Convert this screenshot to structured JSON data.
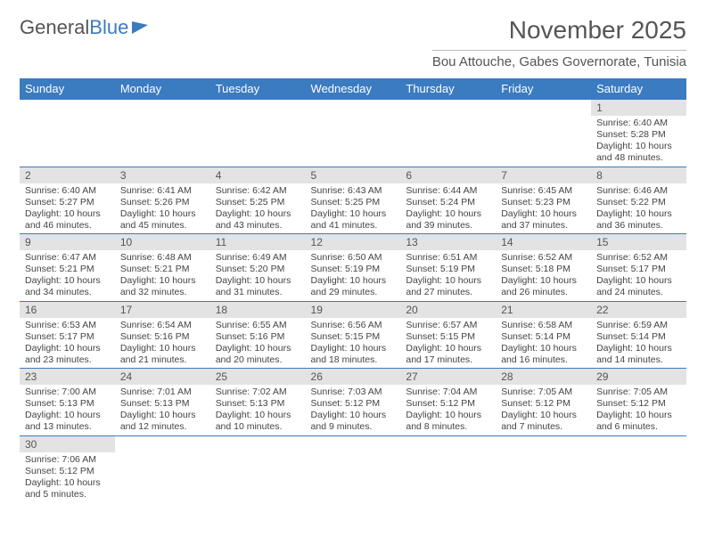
{
  "logo": {
    "text1": "General",
    "text2": "Blue"
  },
  "title": "November 2025",
  "location": "Bou Attouche, Gabes Governorate, Tunisia",
  "weekdays": [
    "Sunday",
    "Monday",
    "Tuesday",
    "Wednesday",
    "Thursday",
    "Friday",
    "Saturday"
  ],
  "header_bg": "#3b7bbf",
  "daynum_bg": "#e3e3e3",
  "row_border": "#3b7bbf",
  "first_weekday_index": 6,
  "days": [
    {
      "n": 1,
      "sunrise": "6:40 AM",
      "sunset": "5:28 PM",
      "daylight": "10 hours and 48 minutes."
    },
    {
      "n": 2,
      "sunrise": "6:40 AM",
      "sunset": "5:27 PM",
      "daylight": "10 hours and 46 minutes."
    },
    {
      "n": 3,
      "sunrise": "6:41 AM",
      "sunset": "5:26 PM",
      "daylight": "10 hours and 45 minutes."
    },
    {
      "n": 4,
      "sunrise": "6:42 AM",
      "sunset": "5:25 PM",
      "daylight": "10 hours and 43 minutes."
    },
    {
      "n": 5,
      "sunrise": "6:43 AM",
      "sunset": "5:25 PM",
      "daylight": "10 hours and 41 minutes."
    },
    {
      "n": 6,
      "sunrise": "6:44 AM",
      "sunset": "5:24 PM",
      "daylight": "10 hours and 39 minutes."
    },
    {
      "n": 7,
      "sunrise": "6:45 AM",
      "sunset": "5:23 PM",
      "daylight": "10 hours and 37 minutes."
    },
    {
      "n": 8,
      "sunrise": "6:46 AM",
      "sunset": "5:22 PM",
      "daylight": "10 hours and 36 minutes."
    },
    {
      "n": 9,
      "sunrise": "6:47 AM",
      "sunset": "5:21 PM",
      "daylight": "10 hours and 34 minutes."
    },
    {
      "n": 10,
      "sunrise": "6:48 AM",
      "sunset": "5:21 PM",
      "daylight": "10 hours and 32 minutes."
    },
    {
      "n": 11,
      "sunrise": "6:49 AM",
      "sunset": "5:20 PM",
      "daylight": "10 hours and 31 minutes."
    },
    {
      "n": 12,
      "sunrise": "6:50 AM",
      "sunset": "5:19 PM",
      "daylight": "10 hours and 29 minutes."
    },
    {
      "n": 13,
      "sunrise": "6:51 AM",
      "sunset": "5:19 PM",
      "daylight": "10 hours and 27 minutes."
    },
    {
      "n": 14,
      "sunrise": "6:52 AM",
      "sunset": "5:18 PM",
      "daylight": "10 hours and 26 minutes."
    },
    {
      "n": 15,
      "sunrise": "6:52 AM",
      "sunset": "5:17 PM",
      "daylight": "10 hours and 24 minutes."
    },
    {
      "n": 16,
      "sunrise": "6:53 AM",
      "sunset": "5:17 PM",
      "daylight": "10 hours and 23 minutes."
    },
    {
      "n": 17,
      "sunrise": "6:54 AM",
      "sunset": "5:16 PM",
      "daylight": "10 hours and 21 minutes."
    },
    {
      "n": 18,
      "sunrise": "6:55 AM",
      "sunset": "5:16 PM",
      "daylight": "10 hours and 20 minutes."
    },
    {
      "n": 19,
      "sunrise": "6:56 AM",
      "sunset": "5:15 PM",
      "daylight": "10 hours and 18 minutes."
    },
    {
      "n": 20,
      "sunrise": "6:57 AM",
      "sunset": "5:15 PM",
      "daylight": "10 hours and 17 minutes."
    },
    {
      "n": 21,
      "sunrise": "6:58 AM",
      "sunset": "5:14 PM",
      "daylight": "10 hours and 16 minutes."
    },
    {
      "n": 22,
      "sunrise": "6:59 AM",
      "sunset": "5:14 PM",
      "daylight": "10 hours and 14 minutes."
    },
    {
      "n": 23,
      "sunrise": "7:00 AM",
      "sunset": "5:13 PM",
      "daylight": "10 hours and 13 minutes."
    },
    {
      "n": 24,
      "sunrise": "7:01 AM",
      "sunset": "5:13 PM",
      "daylight": "10 hours and 12 minutes."
    },
    {
      "n": 25,
      "sunrise": "7:02 AM",
      "sunset": "5:13 PM",
      "daylight": "10 hours and 10 minutes."
    },
    {
      "n": 26,
      "sunrise": "7:03 AM",
      "sunset": "5:12 PM",
      "daylight": "10 hours and 9 minutes."
    },
    {
      "n": 27,
      "sunrise": "7:04 AM",
      "sunset": "5:12 PM",
      "daylight": "10 hours and 8 minutes."
    },
    {
      "n": 28,
      "sunrise": "7:05 AM",
      "sunset": "5:12 PM",
      "daylight": "10 hours and 7 minutes."
    },
    {
      "n": 29,
      "sunrise": "7:05 AM",
      "sunset": "5:12 PM",
      "daylight": "10 hours and 6 minutes."
    },
    {
      "n": 30,
      "sunrise": "7:06 AM",
      "sunset": "5:12 PM",
      "daylight": "10 hours and 5 minutes."
    }
  ],
  "labels": {
    "sunrise": "Sunrise:",
    "sunset": "Sunset:",
    "daylight": "Daylight:"
  }
}
